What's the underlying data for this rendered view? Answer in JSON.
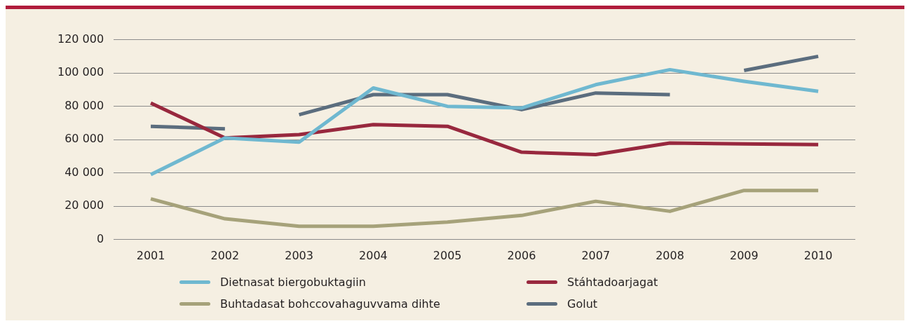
{
  "chart_data": {
    "type": "line",
    "categories": [
      "2001",
      "2002",
      "2003",
      "2004",
      "2005",
      "2006",
      "2007",
      "2008",
      "2009",
      "2010"
    ],
    "series": [
      {
        "name": "Dietnasat biergobuktagiin",
        "color": "#6fb8d0",
        "values": [
          39000,
          61000,
          58500,
          91000,
          80000,
          79000,
          93000,
          102000,
          95000,
          89000
        ]
      },
      {
        "name": "Stáhtadoarjagat",
        "color": "#98283e",
        "values": [
          82000,
          61000,
          63000,
          69000,
          68000,
          52500,
          51000,
          58000,
          57500,
          57000
        ]
      },
      {
        "name": "Buhtadasat bohccovahaguvvama dihte",
        "color": "#a6a27a",
        "values": [
          24500,
          12500,
          8000,
          8000,
          10500,
          14500,
          23000,
          17000,
          29500,
          29500
        ]
      },
      {
        "name": "Golut",
        "color": "#5b6d7e",
        "values": [
          68000,
          66500,
          null,
          null,
          null,
          null,
          null,
          null,
          null,
          null
        ]
      },
      {
        "color": "#5b6d7e",
        "values": [
          null,
          null,
          75000,
          87000,
          87000,
          78000,
          88000,
          87000,
          null,
          null
        ]
      },
      {
        "color": "#5b6d7e",
        "values": [
          null,
          null,
          null,
          null,
          null,
          null,
          null,
          null,
          101500,
          110000
        ]
      }
    ],
    "ylim": [
      0,
      120000
    ],
    "yticks": [
      {
        "value": 0,
        "label": "0"
      },
      {
        "value": 20000,
        "label": "20 000"
      },
      {
        "value": 40000,
        "label": "40 000"
      },
      {
        "value": 60000,
        "label": "60 000"
      },
      {
        "value": 80000,
        "label": "80 000"
      },
      {
        "value": 100000,
        "label": "100 000"
      },
      {
        "value": 120000,
        "label": "120 000"
      }
    ],
    "grid": "y",
    "legend": "bottom",
    "marker": "none",
    "line_style": "solid"
  }
}
